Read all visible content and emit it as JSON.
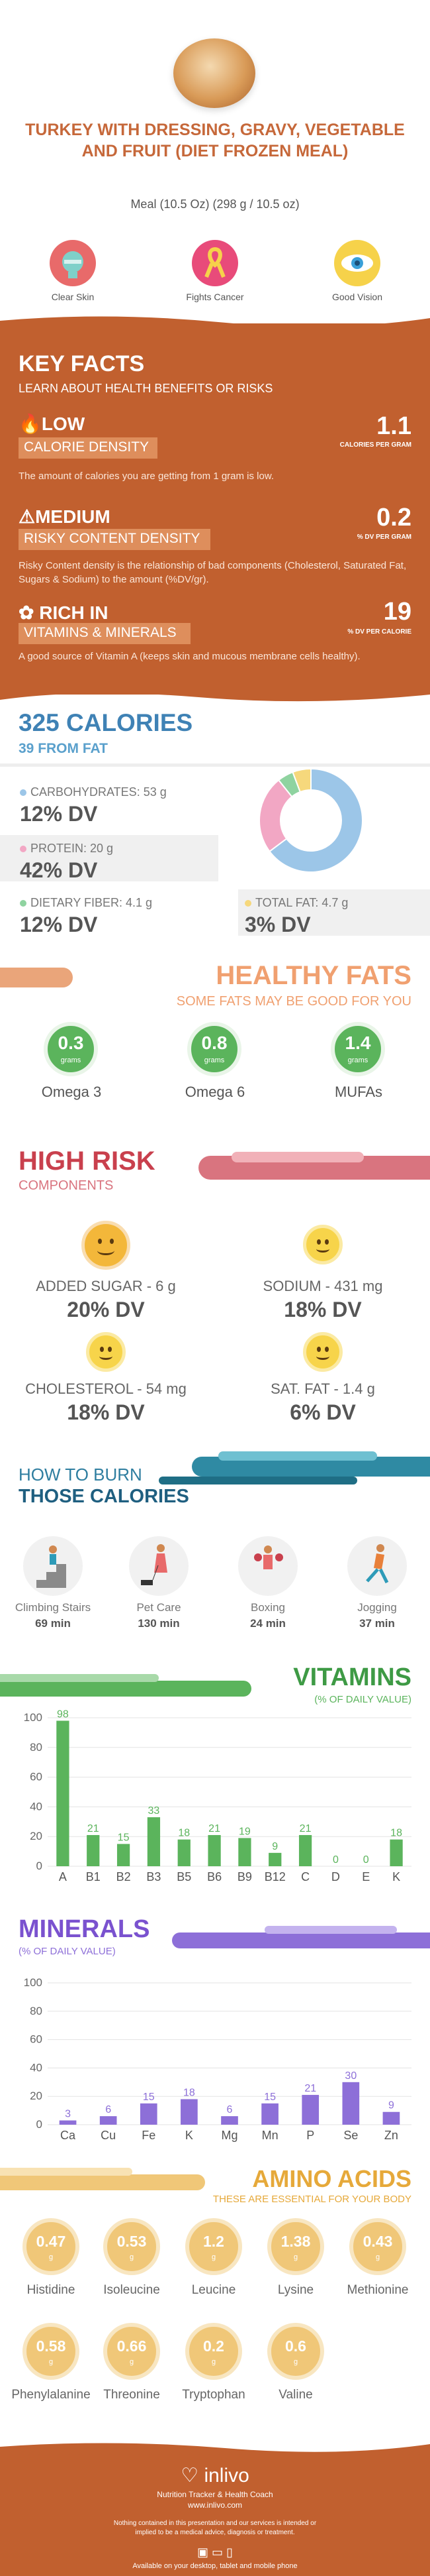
{
  "header": {
    "title": "TURKEY WITH DRESSING, GRAVY, VEGETABLE AND FRUIT (DIET FROZEN MEAL)",
    "subtitle": "Meal (10.5 Oz) (298 g / 10.5 oz)"
  },
  "benefits": [
    {
      "label": "Clear Skin",
      "icon": "face-icon",
      "color": "#e86a6a"
    },
    {
      "label": "Fights Cancer",
      "icon": "ribbon-icon",
      "color": "#e84b7a"
    },
    {
      "label": "Good Vision",
      "icon": "eye-icon",
      "color": "#3aa0d8"
    }
  ],
  "key_facts": {
    "title": "KEY FACTS",
    "subtitle": "LEARN ABOUT HEALTH BENEFITS OR RISKS",
    "low": {
      "level": "LOW",
      "name": "CALORIE DENSITY",
      "value": "1.1",
      "unit": "CALORIES PER GRAM",
      "desc": "The amount of calories you are getting from 1 gram is low."
    },
    "medium": {
      "level": "MEDIUM",
      "name": "RISKY CONTENT DENSITY",
      "value": "0.2",
      "unit": "% DV PER GRAM",
      "desc": "Risky Content density is the relationship of bad components (Cholesterol, Saturated Fat, Sugars & Sodium) to the amount (%DV/gr)."
    },
    "rich": {
      "level": "RICH IN",
      "name": "VITAMINS & MINERALS",
      "value": "19",
      "unit": "% DV PER CALORIE",
      "desc": "A good source of Vitamin A (keeps skin and mucous membrane cells healthy)."
    }
  },
  "calories": {
    "title": "325 CALORIES",
    "fat": "39 FROM FAT",
    "carbs": {
      "label": "CARBOHYDRATES: 53 g",
      "dv": "12% DV",
      "color": "#9cc6e8"
    },
    "protein": {
      "label": "PROTEIN: 20 g",
      "dv": "42% DV",
      "color": "#f2a7c4"
    },
    "fiber": {
      "label": "DIETARY FIBER: 4.1 g",
      "dv": "12% DV",
      "color": "#8fd3a0"
    },
    "fat_total": {
      "label": "TOTAL FAT: 4.7 g",
      "dv": "3% DV",
      "color": "#f6d87c"
    }
  },
  "chart_data": [
    {
      "type": "pie",
      "series": [
        {
          "name": "CARBOHYDRATES",
          "values": [
            53
          ]
        },
        {
          "name": "PROTEIN",
          "values": [
            20
          ]
        },
        {
          "name": "DIETARY FIBER",
          "values": [
            4.1
          ]
        },
        {
          "name": "TOTAL FAT",
          "values": [
            4.7
          ]
        }
      ]
    },
    {
      "type": "bar",
      "title": "VITAMINS",
      "subtitle": "(% OF DAILY VALUE)",
      "categories": [
        "A",
        "B1",
        "B2",
        "B3",
        "B5",
        "B6",
        "B9",
        "B12",
        "C",
        "D",
        "E",
        "K"
      ],
      "values": [
        98,
        21,
        15,
        33,
        18,
        21,
        19,
        9,
        21,
        0,
        0,
        18
      ],
      "value_labels": [
        "98",
        "21",
        "15",
        "33",
        "18",
        "21",
        "19",
        "9",
        "21",
        "0",
        "0",
        "18"
      ],
      "ylim": [
        0,
        100
      ],
      "yticks": [
        "0",
        "20",
        "40",
        "60",
        "80",
        "100"
      ],
      "color": "#5bb45c"
    },
    {
      "type": "bar",
      "title": "MINERALS",
      "subtitle": "(% OF DAILY VALUE)",
      "categories": [
        "Ca",
        "Cu",
        "Fe",
        "K",
        "Mg",
        "Mn",
        "P",
        "Se",
        "Zn"
      ],
      "values": [
        3,
        6,
        15,
        18,
        6,
        15,
        21,
        30,
        9
      ],
      "value_labels": [
        "3",
        "6",
        "15",
        "18",
        "6",
        "15",
        "21",
        "30",
        "9"
      ],
      "ylim": [
        0,
        100
      ],
      "yticks": [
        "0",
        "20",
        "40",
        "60",
        "80",
        "100"
      ],
      "color": "#8d6fd8"
    }
  ],
  "healthy_fats": {
    "title": "HEALTHY FATS",
    "subtitle": "SOME FATS MAY BE GOOD FOR YOU",
    "unit": "grams",
    "items": [
      {
        "value": "0.3",
        "label": "Omega 3"
      },
      {
        "value": "0.8",
        "label": "Omega 6"
      },
      {
        "value": "1.4",
        "label": "MUFAs"
      }
    ]
  },
  "high_risk": {
    "title": "HIGH RISK",
    "subtitle": "COMPONENTS",
    "items": [
      {
        "label": "ADDED SUGAR - 6 g",
        "dv": "20% DV"
      },
      {
        "label": "SODIUM - 431 mg",
        "dv": "18% DV"
      },
      {
        "label": "CHOLESTEROL - 54 mg",
        "dv": "18% DV"
      },
      {
        "label": "SAT. FAT - 1.4 g",
        "dv": "6% DV"
      }
    ]
  },
  "burn": {
    "title1": "HOW TO BURN",
    "title2": "THOSE CALORIES",
    "items": [
      {
        "label": "Climbing Stairs",
        "time": "69 min"
      },
      {
        "label": "Pet Care",
        "time": "130 min"
      },
      {
        "label": "Boxing",
        "time": "24 min"
      },
      {
        "label": "Jogging",
        "time": "37 min"
      }
    ]
  },
  "amino": {
    "title": "AMINO ACIDS",
    "subtitle": "THESE ARE ESSENTIAL FOR YOUR BODY",
    "unit": "g",
    "items": [
      {
        "value": "0.47",
        "label": "Histidine"
      },
      {
        "value": "0.53",
        "label": "Isoleucine"
      },
      {
        "value": "1.2",
        "label": "Leucine"
      },
      {
        "value": "1.38",
        "label": "Lysine"
      },
      {
        "value": "0.43",
        "label": "Methionine"
      },
      {
        "value": "0.58",
        "label": "Phenylalanine"
      },
      {
        "value": "0.66",
        "label": "Threonine"
      },
      {
        "value": "0.2",
        "label": "Tryptophan"
      },
      {
        "value": "0.6",
        "label": "Valine"
      }
    ]
  },
  "footer": {
    "brand": "inlivo",
    "tagline": "Nutrition Tracker & Health Coach",
    "url": "www.inlivo.com",
    "disclaimer": "Nothing contained in this presentation and our services is intended or implied to be a medical advice, diagnosis or treatment.",
    "available": "Available on your desktop, tablet and mobile phone"
  }
}
